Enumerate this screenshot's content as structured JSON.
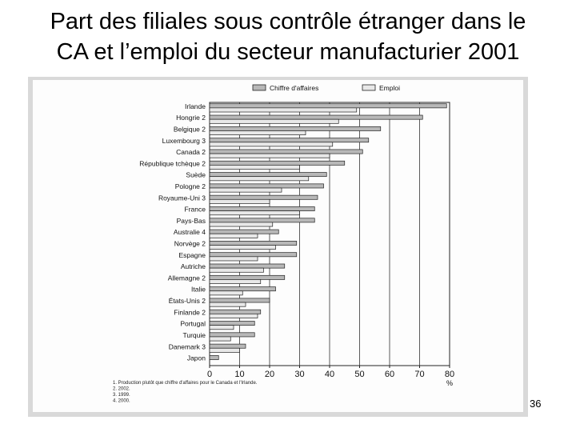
{
  "slide": {
    "title_line1": "Part des filiales sous contrôle étranger dans le",
    "title_line2": "CA et l’emploi du secteur manufacturier 2001",
    "page_number": "36"
  },
  "chart_data": {
    "type": "bar",
    "orientation": "horizontal",
    "categories": [
      "Irlande",
      "Hongrie 2",
      "Belgique 2",
      "Luxembourg 3",
      "Canada 2",
      "République tchèque 2",
      "Suède",
      "Pologne 2",
      "Royaume-Uni 3",
      "France",
      "Pays-Bas",
      "Australie 4",
      "Norvège 2",
      "Espagne",
      "Autriche",
      "Allemagne 2",
      "Italie",
      "États-Unis 2",
      "Finlande 2",
      "Portugal",
      "Turquie",
      "Danemark 3",
      "Japon"
    ],
    "series": [
      {
        "name": "Chiffre d'affaires",
        "color": "#b8b8b8",
        "values": [
          79,
          71,
          57,
          53,
          51,
          45,
          39,
          38,
          36,
          35,
          35,
          23,
          29,
          29,
          25,
          25,
          22,
          20,
          17,
          15,
          15,
          12,
          3
        ]
      },
      {
        "name": "Emploi",
        "color": "#e8e8e8",
        "values": [
          49,
          43,
          32,
          41,
          40,
          30,
          33,
          24,
          20,
          30,
          21,
          16,
          22,
          16,
          18,
          17,
          11,
          12,
          16,
          8,
          7,
          10,
          null
        ]
      }
    ],
    "xlim": [
      0,
      80
    ],
    "xticks": [
      "0",
      "10",
      "20",
      "30",
      "40",
      "50",
      "60",
      "70",
      "80"
    ],
    "xunit": "%",
    "grid": true,
    "legend_position": "top",
    "footnotes": [
      "1. Production plutôt que chiffre d'affaires pour le Canada et l'Irlande.",
      "2. 2002.",
      "3. 1999.",
      "4. 2000."
    ]
  }
}
